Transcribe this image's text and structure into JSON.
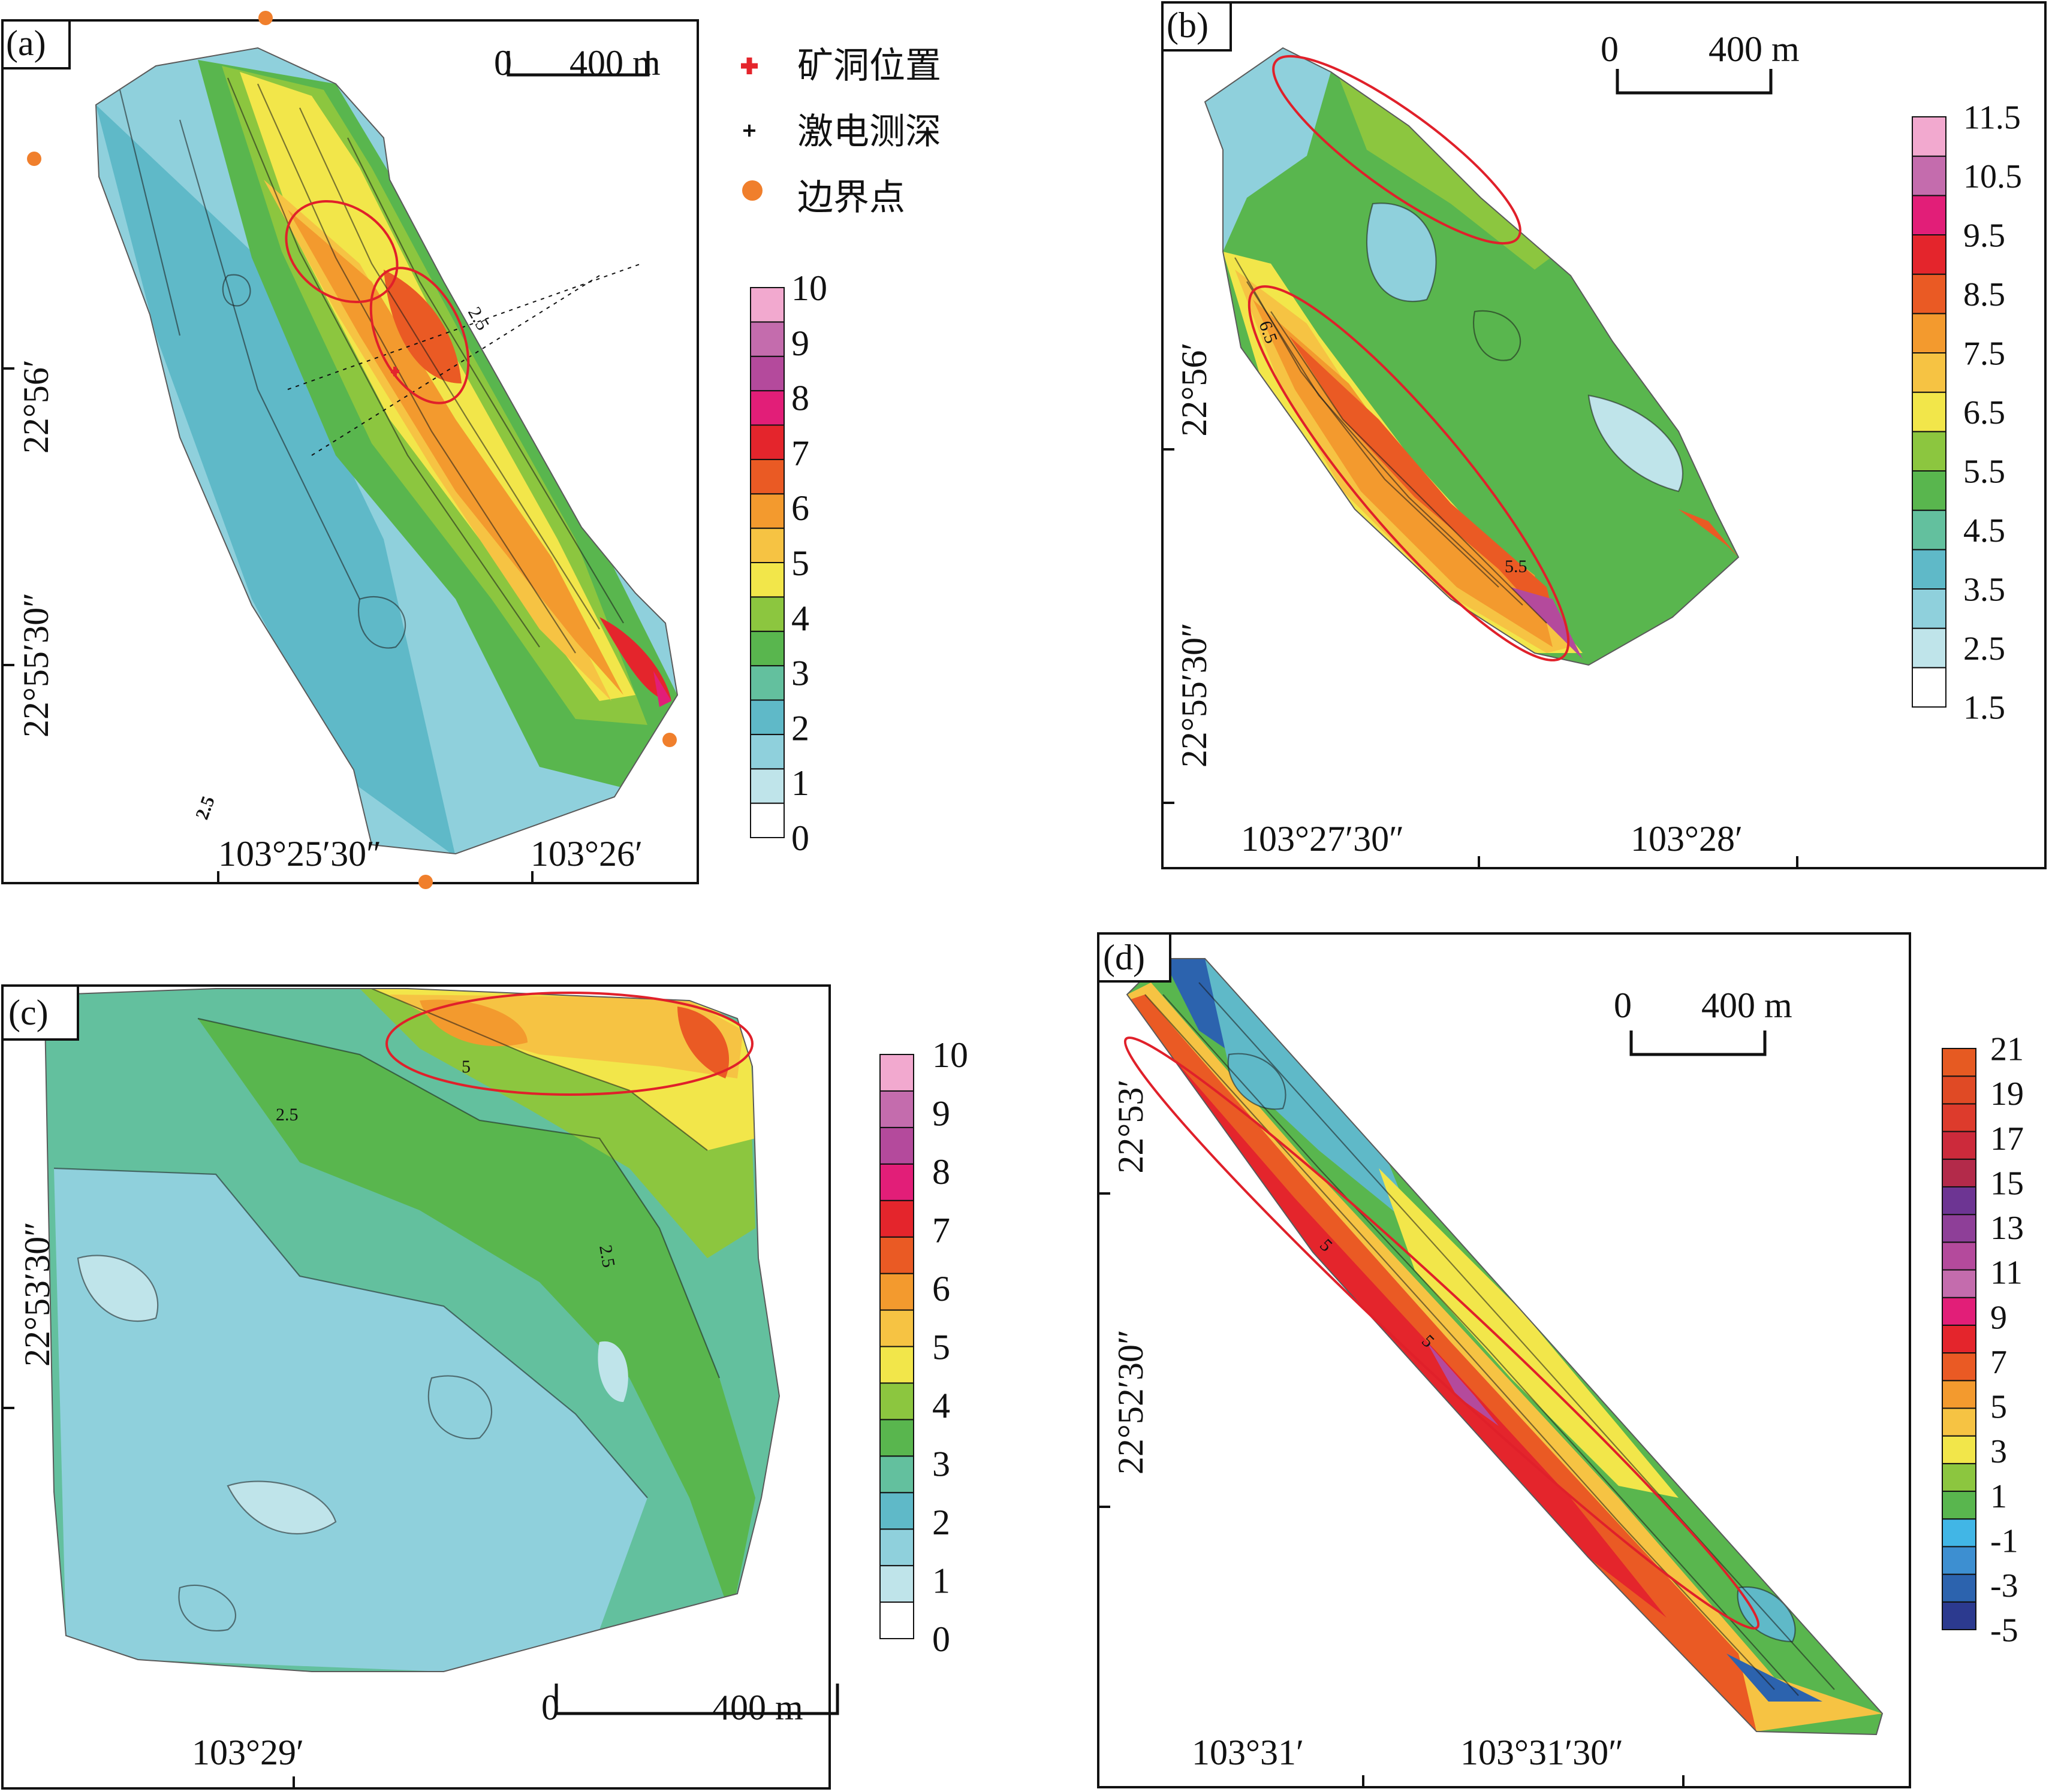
{
  "colors": {
    "ramp_a": [
      "#ffffff",
      "#bfe4ea",
      "#8fd0dc",
      "#5fb9c8",
      "#63c09e",
      "#59b64e",
      "#8cc63f",
      "#f2e64a",
      "#f6c343",
      "#f39a2e",
      "#ea5a24",
      "#e4252c",
      "#e21e78",
      "#b44a9c",
      "#c46cad",
      "#f2a9cf"
    ],
    "ellipse": "#e0202a",
    "boundary_point": "#f07f2c",
    "mine_marker": "#e4252c"
  },
  "panels": {
    "a": {
      "tag": "(a)",
      "scale_zero": "0",
      "scale_label": "400 m",
      "lat_labels": [
        "22°56′",
        "22°55′30″"
      ],
      "lon_labels": [
        "103°25′30″",
        "103°26′"
      ],
      "legend_values": [
        "10",
        "9",
        "8",
        "7",
        "6",
        "5",
        "4",
        "3",
        "2",
        "1",
        "0"
      ],
      "contour_labels": [
        "2.5",
        "2.5",
        "2.5",
        "2.5",
        "2.5"
      ],
      "symbol_legend": [
        {
          "icon": "red-cross",
          "text": "矿洞位置"
        },
        {
          "icon": "plus",
          "text": "激电测深"
        },
        {
          "icon": "orange-dot",
          "text": "边界点"
        }
      ]
    },
    "b": {
      "tag": "(b)",
      "scale_zero": "0",
      "scale_label": "400 m",
      "lat_labels": [
        "22°56′",
        "22°55′30″"
      ],
      "lon_labels": [
        "103°27′30″",
        "103°28′"
      ],
      "legend_values": [
        "11.5",
        "10.5",
        "9.5",
        "8.5",
        "7.5",
        "6.5",
        "5.5",
        "4.5",
        "3.5",
        "2.5",
        "1.5"
      ],
      "contour_labels": [
        "6.5",
        "6.5",
        "5.5"
      ]
    },
    "c": {
      "tag": "(c)",
      "scale_zero": "0",
      "scale_label": "400 m",
      "lat_labels": [
        "22°53′30″"
      ],
      "lon_labels": [
        "103°29′"
      ],
      "legend_values": [
        "10",
        "9",
        "8",
        "7",
        "6",
        "5",
        "4",
        "3",
        "2",
        "1",
        "0"
      ],
      "contour_labels": [
        "2.5",
        "2.5",
        "2.5",
        "5",
        "2.5",
        "2.5"
      ]
    },
    "d": {
      "tag": "(d)",
      "scale_zero": "0",
      "scale_label": "400 m",
      "lat_labels": [
        "22°53′",
        "22°52′30″"
      ],
      "lon_labels": [
        "103°31′",
        "103°31′30″"
      ],
      "legend_values": [
        "21",
        "19",
        "17",
        "15",
        "13",
        "11",
        "9",
        "7",
        "5",
        "3",
        "1",
        "-1",
        "-3",
        "-5"
      ],
      "contour_labels": [
        "5",
        "5"
      ]
    }
  }
}
